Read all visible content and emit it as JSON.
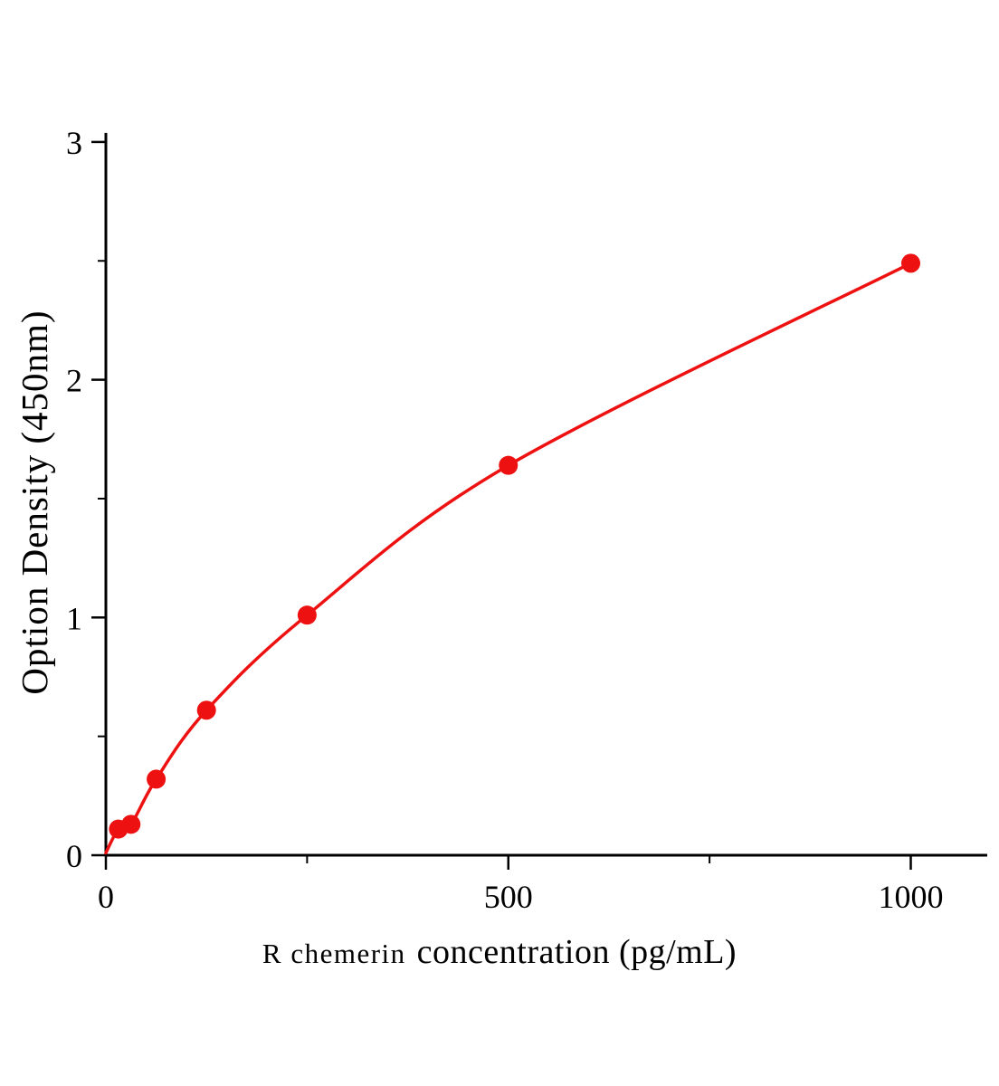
{
  "chart_data": {
    "type": "line",
    "title": "",
    "ylabel": "Option Density (450nm)",
    "xlabel_prefix": "R chemerin",
    "xlabel_main": "concentration (pg/mL)",
    "xlim": [
      0,
      1095
    ],
    "ylim": [
      0,
      3
    ],
    "x_ticks": [
      0,
      500,
      1000
    ],
    "x_minor_ticks": [
      250,
      750
    ],
    "y_ticks": [
      0,
      1,
      2,
      3
    ],
    "y_minor_ticks": [
      0.5,
      1.5,
      2.5
    ],
    "curve_start": {
      "x": 0,
      "y": 0.01
    },
    "points": [
      {
        "x": 15.6,
        "y": 0.11
      },
      {
        "x": 31.2,
        "y": 0.13
      },
      {
        "x": 62.5,
        "y": 0.32
      },
      {
        "x": 125,
        "y": 0.61
      },
      {
        "x": 250,
        "y": 1.01
      },
      {
        "x": 500,
        "y": 1.64
      },
      {
        "x": 1000,
        "y": 2.49
      }
    ],
    "line_color": "#ee1111",
    "marker_color": "#ee1111",
    "axis_color": "#000000",
    "legend": "none",
    "grid": "off"
  }
}
